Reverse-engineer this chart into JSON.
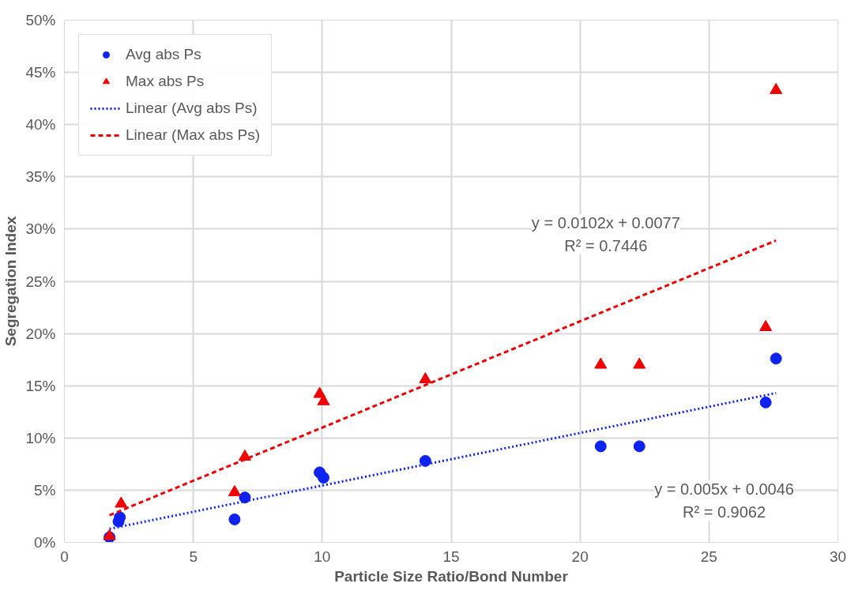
{
  "chart_data": {
    "type": "scatter",
    "xlabel": "Particle Size Ratio/Bond Number",
    "ylabel": "Segregation Index",
    "xlim": [
      0,
      30
    ],
    "xticks": [
      0,
      5,
      10,
      15,
      20,
      25,
      30
    ],
    "ylim": [
      0,
      50
    ],
    "yticks": [
      {
        "value": 0,
        "label": "0%"
      },
      {
        "value": 5,
        "label": "5%"
      },
      {
        "value": 10,
        "label": "10%"
      },
      {
        "value": 15,
        "label": "15%"
      },
      {
        "value": 20,
        "label": "20%"
      },
      {
        "value": 25,
        "label": "25%"
      },
      {
        "value": 30,
        "label": "30%"
      },
      {
        "value": 35,
        "label": "35%"
      },
      {
        "value": 40,
        "label": "40%"
      },
      {
        "value": 45,
        "label": "45%"
      },
      {
        "value": 50,
        "label": "50%"
      }
    ],
    "grid": true,
    "legend": "top left",
    "series": [
      {
        "name": "Avg abs Ps",
        "marker": "circle",
        "color": "#0f23f0",
        "x": [
          1.75,
          2.1,
          2.15,
          6.6,
          7.0,
          9.9,
          10.05,
          14.0,
          20.8,
          22.3,
          27.2,
          27.6
        ],
        "values": [
          0.5,
          2.0,
          2.4,
          2.2,
          4.3,
          6.7,
          6.2,
          7.8,
          9.2,
          9.2,
          13.4,
          17.6
        ]
      },
      {
        "name": "Max abs Ps",
        "marker": "triangle",
        "color": "#f00000",
        "x": [
          1.75,
          2.2,
          6.6,
          7.0,
          9.9,
          10.05,
          14.0,
          20.8,
          22.3,
          27.2,
          27.6
        ],
        "values": [
          0.6,
          3.7,
          4.8,
          8.2,
          14.2,
          13.5,
          15.6,
          17.0,
          17.0,
          20.6,
          43.3
        ]
      },
      {
        "name": "Linear (Avg abs Ps)",
        "type": "line",
        "line_style": "dotted",
        "color": "#0f23f0",
        "x": [
          1.75,
          27.6
        ],
        "values": [
          1.3,
          14.3
        ]
      },
      {
        "name": "Linear (Max abs Ps)",
        "type": "line",
        "line_style": "dashed",
        "color": "#f00000",
        "x": [
          1.75,
          27.6
        ],
        "values": [
          2.6,
          28.9
        ]
      }
    ],
    "annotations": [
      "y = 0.0102x + 0.0077\nR² = 0.7446",
      "y = 0.005x + 0.0046\nR² = 0.9062"
    ]
  }
}
